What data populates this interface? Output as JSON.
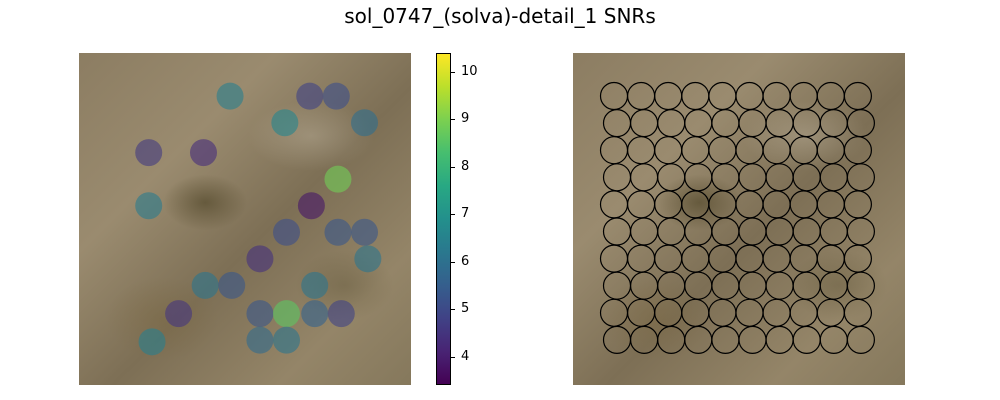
{
  "title": "sol_0747_(solva)-detail_1 SNRs",
  "colorbar": {
    "min": 3.4,
    "max": 10.4,
    "ticks": [
      4,
      5,
      6,
      7,
      8,
      9,
      10
    ],
    "tick_labels": [
      "4",
      "5",
      "6",
      "7",
      "8",
      "9",
      "10"
    ],
    "colormap": "viridis"
  },
  "chart_data": [
    {
      "type": "scatter",
      "title": "",
      "xlabel": "",
      "ylabel": "",
      "axes_visible": false,
      "background": "rock texture image",
      "point_color_by": "snr",
      "xlim": [
        0,
        1
      ],
      "ylim": [
        0,
        1
      ],
      "points": [
        {
          "x": 0.455,
          "y": 0.87,
          "snr": 6.4
        },
        {
          "x": 0.695,
          "y": 0.87,
          "snr": 4.8
        },
        {
          "x": 0.775,
          "y": 0.87,
          "snr": 5.1
        },
        {
          "x": 0.62,
          "y": 0.79,
          "snr": 6.6
        },
        {
          "x": 0.86,
          "y": 0.79,
          "snr": 5.9
        },
        {
          "x": 0.21,
          "y": 0.7,
          "snr": 4.6
        },
        {
          "x": 0.375,
          "y": 0.7,
          "snr": 4.3
        },
        {
          "x": 0.78,
          "y": 0.62,
          "snr": 8.9
        },
        {
          "x": 0.21,
          "y": 0.54,
          "snr": 6.3
        },
        {
          "x": 0.7,
          "y": 0.54,
          "snr": 3.8
        },
        {
          "x": 0.625,
          "y": 0.46,
          "snr": 5.1
        },
        {
          "x": 0.78,
          "y": 0.46,
          "snr": 5.3
        },
        {
          "x": 0.86,
          "y": 0.46,
          "snr": 5.3
        },
        {
          "x": 0.545,
          "y": 0.38,
          "snr": 4.4
        },
        {
          "x": 0.87,
          "y": 0.38,
          "snr": 6.1
        },
        {
          "x": 0.38,
          "y": 0.3,
          "snr": 6.1
        },
        {
          "x": 0.46,
          "y": 0.3,
          "snr": 5.3
        },
        {
          "x": 0.71,
          "y": 0.3,
          "snr": 6.1
        },
        {
          "x": 0.3,
          "y": 0.215,
          "snr": 4.5
        },
        {
          "x": 0.545,
          "y": 0.215,
          "snr": 5.3
        },
        {
          "x": 0.625,
          "y": 0.215,
          "snr": 8.6
        },
        {
          "x": 0.71,
          "y": 0.215,
          "snr": 5.6
        },
        {
          "x": 0.79,
          "y": 0.215,
          "snr": 4.8
        },
        {
          "x": 0.22,
          "y": 0.13,
          "snr": 6.4
        },
        {
          "x": 0.545,
          "y": 0.135,
          "snr": 5.8
        },
        {
          "x": 0.625,
          "y": 0.135,
          "snr": 6.1
        }
      ]
    },
    {
      "type": "scatter",
      "title": "",
      "xlabel": "",
      "ylabel": "",
      "axes_visible": false,
      "background": "rock texture image",
      "marker": "open black circles",
      "grid": {
        "columns": 10,
        "rows": 10
      },
      "xlim": [
        0,
        1
      ],
      "ylim": [
        0,
        1
      ]
    }
  ]
}
